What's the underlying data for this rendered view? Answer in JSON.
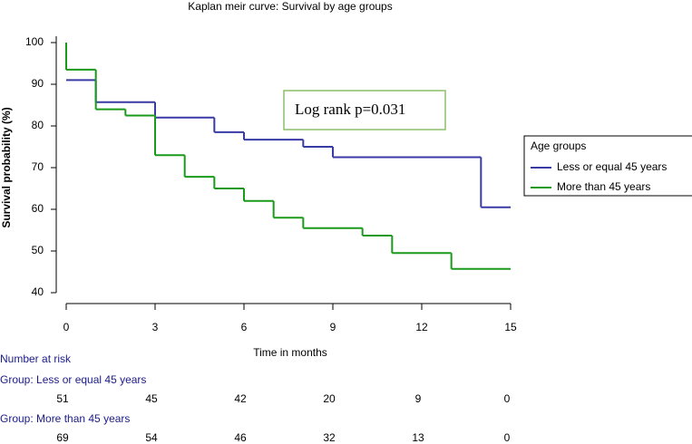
{
  "chart_data": {
    "type": "step",
    "title": "Kaplan meir curve: Survival by age groups",
    "xlabel": "Time in months",
    "ylabel": "Survival probability (%)",
    "annotation": "Log rank p=0.031",
    "legend_title": "Age groups",
    "legend_position": "right",
    "xlim": [
      0,
      15
    ],
    "xticks": [
      0,
      3,
      6,
      9,
      12,
      15
    ],
    "ylim": [
      40,
      100
    ],
    "yticks": [
      40,
      50,
      60,
      70,
      80,
      90,
      100
    ],
    "series": [
      {
        "name": "Less or equal 45 years",
        "color": "#3a3aa6",
        "x": [
          0,
          1,
          3,
          5,
          6,
          8,
          9,
          14,
          15
        ],
        "values": [
          91,
          85.7,
          82,
          78.5,
          76.7,
          75,
          72.5,
          60.5,
          60.5
        ]
      },
      {
        "name": "More than 45 years",
        "color": "#1a9a1a",
        "x": [
          0,
          0,
          1,
          2,
          3,
          4,
          5,
          6,
          7,
          8,
          10,
          11,
          13,
          15
        ],
        "values": [
          100,
          93.5,
          84,
          82.5,
          73,
          67.8,
          65,
          62,
          58,
          55.5,
          53.7,
          49.5,
          45.7,
          45.7
        ]
      }
    ],
    "risk_table": {
      "title": "Number at risk",
      "times": [
        0,
        3,
        6,
        9,
        12,
        15
      ],
      "groups": [
        {
          "label": "Group: Less or equal 45 years",
          "counts": [
            51,
            45,
            42,
            20,
            9,
            0
          ]
        },
        {
          "label": "Group: More than 45 years",
          "counts": [
            69,
            54,
            46,
            32,
            13,
            0
          ]
        }
      ]
    }
  }
}
